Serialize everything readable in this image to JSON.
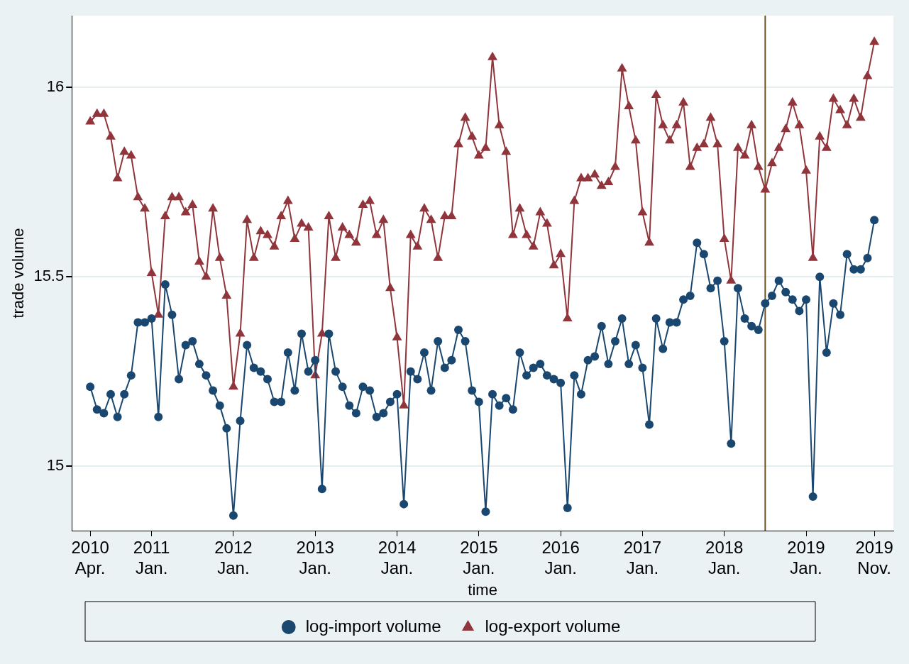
{
  "chart_data": {
    "type": "line",
    "xlabel": "time",
    "ylabel": "trade volume",
    "x": [
      "2010-04",
      "2010-05",
      "2010-06",
      "2010-07",
      "2010-08",
      "2010-09",
      "2010-10",
      "2010-11",
      "2010-12",
      "2011-01",
      "2011-02",
      "2011-03",
      "2011-04",
      "2011-05",
      "2011-06",
      "2011-07",
      "2011-08",
      "2011-09",
      "2011-10",
      "2011-11",
      "2011-12",
      "2012-01",
      "2012-02",
      "2012-03",
      "2012-04",
      "2012-05",
      "2012-06",
      "2012-07",
      "2012-08",
      "2012-09",
      "2012-10",
      "2012-11",
      "2012-12",
      "2013-01",
      "2013-02",
      "2013-03",
      "2013-04",
      "2013-05",
      "2013-06",
      "2013-07",
      "2013-08",
      "2013-09",
      "2013-10",
      "2013-11",
      "2013-12",
      "2014-01",
      "2014-02",
      "2014-03",
      "2014-04",
      "2014-05",
      "2014-06",
      "2014-07",
      "2014-08",
      "2014-09",
      "2014-10",
      "2014-11",
      "2014-12",
      "2015-01",
      "2015-02",
      "2015-03",
      "2015-04",
      "2015-05",
      "2015-06",
      "2015-07",
      "2015-08",
      "2015-09",
      "2015-10",
      "2015-11",
      "2015-12",
      "2016-01",
      "2016-02",
      "2016-03",
      "2016-04",
      "2016-05",
      "2016-06",
      "2016-07",
      "2016-08",
      "2016-09",
      "2016-10",
      "2016-11",
      "2016-12",
      "2017-01",
      "2017-02",
      "2017-03",
      "2017-04",
      "2017-05",
      "2017-06",
      "2017-07",
      "2017-08",
      "2017-09",
      "2017-10",
      "2017-11",
      "2017-12",
      "2018-01",
      "2018-02",
      "2018-03",
      "2018-04",
      "2018-05",
      "2018-06",
      "2018-07",
      "2018-08",
      "2018-09",
      "2018-10",
      "2018-11",
      "2018-12",
      "2019-01",
      "2019-02",
      "2019-03",
      "2019-04",
      "2019-05",
      "2019-06",
      "2019-07",
      "2019-08",
      "2019-09",
      "2019-10",
      "2019-11"
    ],
    "series": [
      {
        "name": "log-import volume",
        "color": "#1a476f",
        "marker": "circle",
        "values": [
          15.21,
          15.15,
          15.14,
          15.19,
          15.13,
          15.19,
          15.24,
          15.38,
          15.38,
          15.39,
          15.13,
          15.48,
          15.4,
          15.23,
          15.32,
          15.33,
          15.27,
          15.24,
          15.2,
          15.16,
          15.1,
          14.87,
          15.12,
          15.32,
          15.26,
          15.25,
          15.23,
          15.17,
          15.17,
          15.3,
          15.2,
          15.35,
          15.25,
          15.28,
          14.94,
          15.35,
          15.25,
          15.21,
          15.16,
          15.14,
          15.21,
          15.2,
          15.13,
          15.14,
          15.17,
          15.19,
          14.9,
          15.25,
          15.23,
          15.3,
          15.2,
          15.33,
          15.26,
          15.28,
          15.36,
          15.33,
          15.2,
          15.17,
          14.88,
          15.19,
          15.16,
          15.18,
          15.15,
          15.3,
          15.24,
          15.26,
          15.27,
          15.24,
          15.23,
          15.22,
          14.89,
          15.24,
          15.19,
          15.28,
          15.29,
          15.37,
          15.27,
          15.33,
          15.39,
          15.27,
          15.32,
          15.26,
          15.11,
          15.39,
          15.31,
          15.38,
          15.38,
          15.44,
          15.45,
          15.59,
          15.56,
          15.47,
          15.49,
          15.33,
          15.06,
          15.47,
          15.39,
          15.37,
          15.36,
          15.43,
          15.45,
          15.49,
          15.46,
          15.44,
          15.41,
          15.44,
          14.92,
          15.5,
          15.3,
          15.43,
          15.4,
          15.56,
          15.52,
          15.52,
          15.55,
          15.65
        ]
      },
      {
        "name": "log-export volume",
        "color": "#90353b",
        "marker": "triangle",
        "values": [
          15.91,
          15.93,
          15.93,
          15.87,
          15.76,
          15.83,
          15.82,
          15.71,
          15.68,
          15.51,
          15.4,
          15.66,
          15.71,
          15.71,
          15.67,
          15.69,
          15.54,
          15.5,
          15.68,
          15.55,
          15.45,
          15.21,
          15.35,
          15.65,
          15.55,
          15.62,
          15.61,
          15.58,
          15.66,
          15.7,
          15.6,
          15.64,
          15.63,
          15.24,
          15.35,
          15.66,
          15.55,
          15.63,
          15.61,
          15.59,
          15.69,
          15.7,
          15.61,
          15.65,
          15.47,
          15.34,
          15.16,
          15.61,
          15.58,
          15.68,
          15.65,
          15.55,
          15.66,
          15.66,
          15.85,
          15.92,
          15.87,
          15.82,
          15.84,
          16.08,
          15.9,
          15.83,
          15.61,
          15.68,
          15.61,
          15.58,
          15.67,
          15.64,
          15.53,
          15.56,
          15.39,
          15.7,
          15.76,
          15.76,
          15.77,
          15.74,
          15.75,
          15.79,
          16.05,
          15.95,
          15.86,
          15.67,
          15.59,
          15.98,
          15.9,
          15.86,
          15.9,
          15.96,
          15.79,
          15.84,
          15.85,
          15.92,
          15.85,
          15.6,
          15.49,
          15.84,
          15.82,
          15.9,
          15.79,
          15.73,
          15.8,
          15.84,
          15.89,
          15.96,
          15.9,
          15.78,
          15.55,
          15.87,
          15.84,
          15.97,
          15.94,
          15.9,
          15.97,
          15.92,
          16.03,
          16.12
        ]
      }
    ],
    "xlim": [
      "2010-01-10",
      "2020-01-25"
    ],
    "xticks": [
      {
        "value": "2010-04",
        "label": "2010\nApr."
      },
      {
        "value": "2011-01",
        "label": "2011\nJan."
      },
      {
        "value": "2012-01",
        "label": "2012\nJan."
      },
      {
        "value": "2013-01",
        "label": "2013\nJan."
      },
      {
        "value": "2014-01",
        "label": "2014\nJan."
      },
      {
        "value": "2015-01",
        "label": "2015\nJan."
      },
      {
        "value": "2016-01",
        "label": "2016\nJan."
      },
      {
        "value": "2017-01",
        "label": "2017\nJan."
      },
      {
        "value": "2018-01",
        "label": "2018\nJan."
      },
      {
        "value": "2019-01",
        "label": "2019\nJan."
      },
      {
        "value": "2019-11",
        "label": "2019\nNov."
      }
    ],
    "ylim": [
      14.83,
      16.19
    ],
    "yticks": [
      15,
      15.5,
      16
    ],
    "ref_lines": [
      {
        "axis": "x",
        "value": "2018-07",
        "color": "#6b5220"
      }
    ],
    "grid": "y",
    "legend": "bottom",
    "line_style": "solid"
  }
}
